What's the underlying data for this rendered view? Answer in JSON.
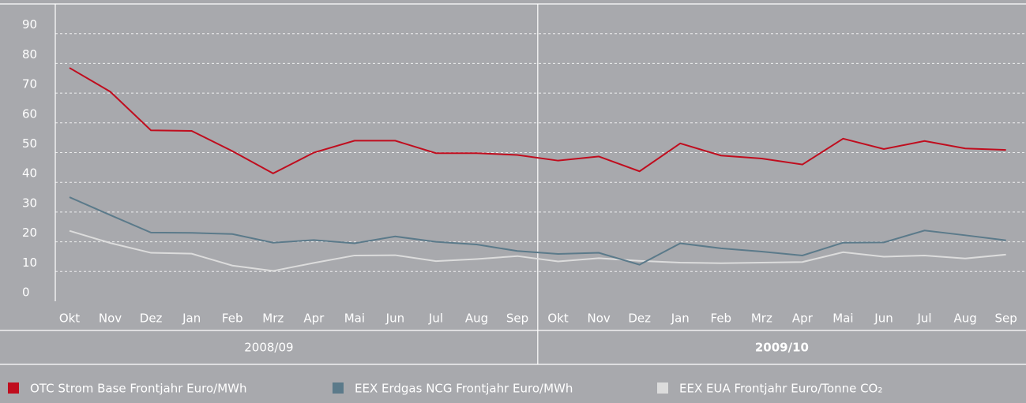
{
  "chart_data": {
    "type": "line",
    "categories": [
      "Okt",
      "Nov",
      "Dez",
      "Jan",
      "Feb",
      "Mrz",
      "Apr",
      "Mai",
      "Jun",
      "Jul",
      "Aug",
      "Sep",
      "Okt",
      "Nov",
      "Dez",
      "Jan",
      "Feb",
      "Mrz",
      "Apr",
      "Mai",
      "Jun",
      "Jul",
      "Aug",
      "Sep"
    ],
    "groups": [
      "2008/09",
      "2009/10"
    ],
    "series": [
      {
        "name": "OTC Strom Base Frontjahr Euro/MWh",
        "color": "#c00d1e",
        "values": [
          78.5,
          70.5,
          57.5,
          57.3,
          50.5,
          43,
          50,
          54,
          54,
          49.8,
          49.8,
          49.2,
          47.3,
          48.7,
          43.7,
          53.1,
          49,
          48,
          46,
          54.7,
          51.2,
          53.9,
          51.4,
          50.9
        ]
      },
      {
        "name": "EEX Erdgas NCG Frontjahr Euro/MWh",
        "color": "#5b7a8a",
        "values": [
          35,
          29,
          23.1,
          23,
          22.6,
          19.7,
          20.6,
          19.5,
          21.8,
          20,
          19.1,
          16.9,
          15.9,
          16.3,
          12.3,
          19.5,
          17.8,
          16.7,
          15.4,
          19.7,
          19.8,
          23.8,
          22.2,
          20.5
        ]
      },
      {
        "name": "EEX EUA Frontjahr Euro/Tonne CO₂",
        "color": "#dcdcdc",
        "values": [
          23.7,
          19.6,
          16.3,
          16,
          12,
          10.2,
          12.9,
          15.4,
          15.5,
          13.5,
          14.2,
          15.2,
          13.4,
          14.5,
          13.6,
          13,
          12.8,
          13,
          13.2,
          16.5,
          15,
          15.4,
          14.4,
          15.7
        ]
      }
    ],
    "ylim": [
      0,
      100
    ],
    "yticks": [
      0,
      10,
      20,
      30,
      40,
      50,
      60,
      70,
      80,
      90
    ],
    "grid": true
  }
}
